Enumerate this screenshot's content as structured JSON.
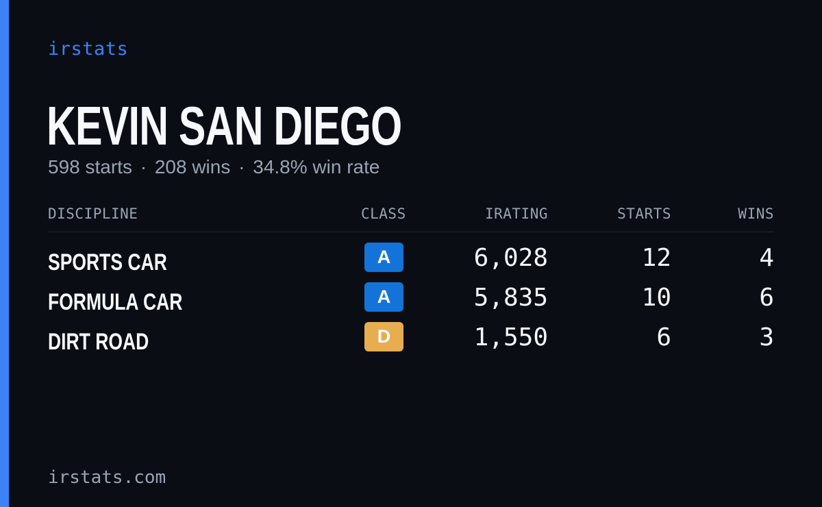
{
  "brand": "irstats",
  "driver": {
    "name": "KEVIN SAN DIEGO",
    "starts": "598 starts",
    "wins": "208 wins",
    "win_rate": "34.8% win rate",
    "separator": "·"
  },
  "table": {
    "headers": {
      "discipline": "DISCIPLINE",
      "class": "CLASS",
      "irating": "IRATING",
      "starts": "STARTS",
      "wins": "WINS"
    },
    "rows": [
      {
        "discipline": "SPORTS CAR",
        "class": "A",
        "class_color": "#1473d9",
        "class_text_color": "#ffffff",
        "irating": "6,028",
        "starts": "12",
        "wins": "4"
      },
      {
        "discipline": "FORMULA CAR",
        "class": "A",
        "class_color": "#1473d9",
        "class_text_color": "#ffffff",
        "irating": "5,835",
        "starts": "10",
        "wins": "6"
      },
      {
        "discipline": "DIRT ROAD",
        "class": "D",
        "class_color": "#e8ad50",
        "class_text_color": "#ffffff",
        "irating": "1,550",
        "starts": "6",
        "wins": "3"
      }
    ]
  },
  "footer": "irstats.com",
  "colors": {
    "background": "#0a0d14",
    "accent": "#3b82f6",
    "text_primary": "#f7f8fb",
    "text_muted": "#9aa3b4"
  }
}
